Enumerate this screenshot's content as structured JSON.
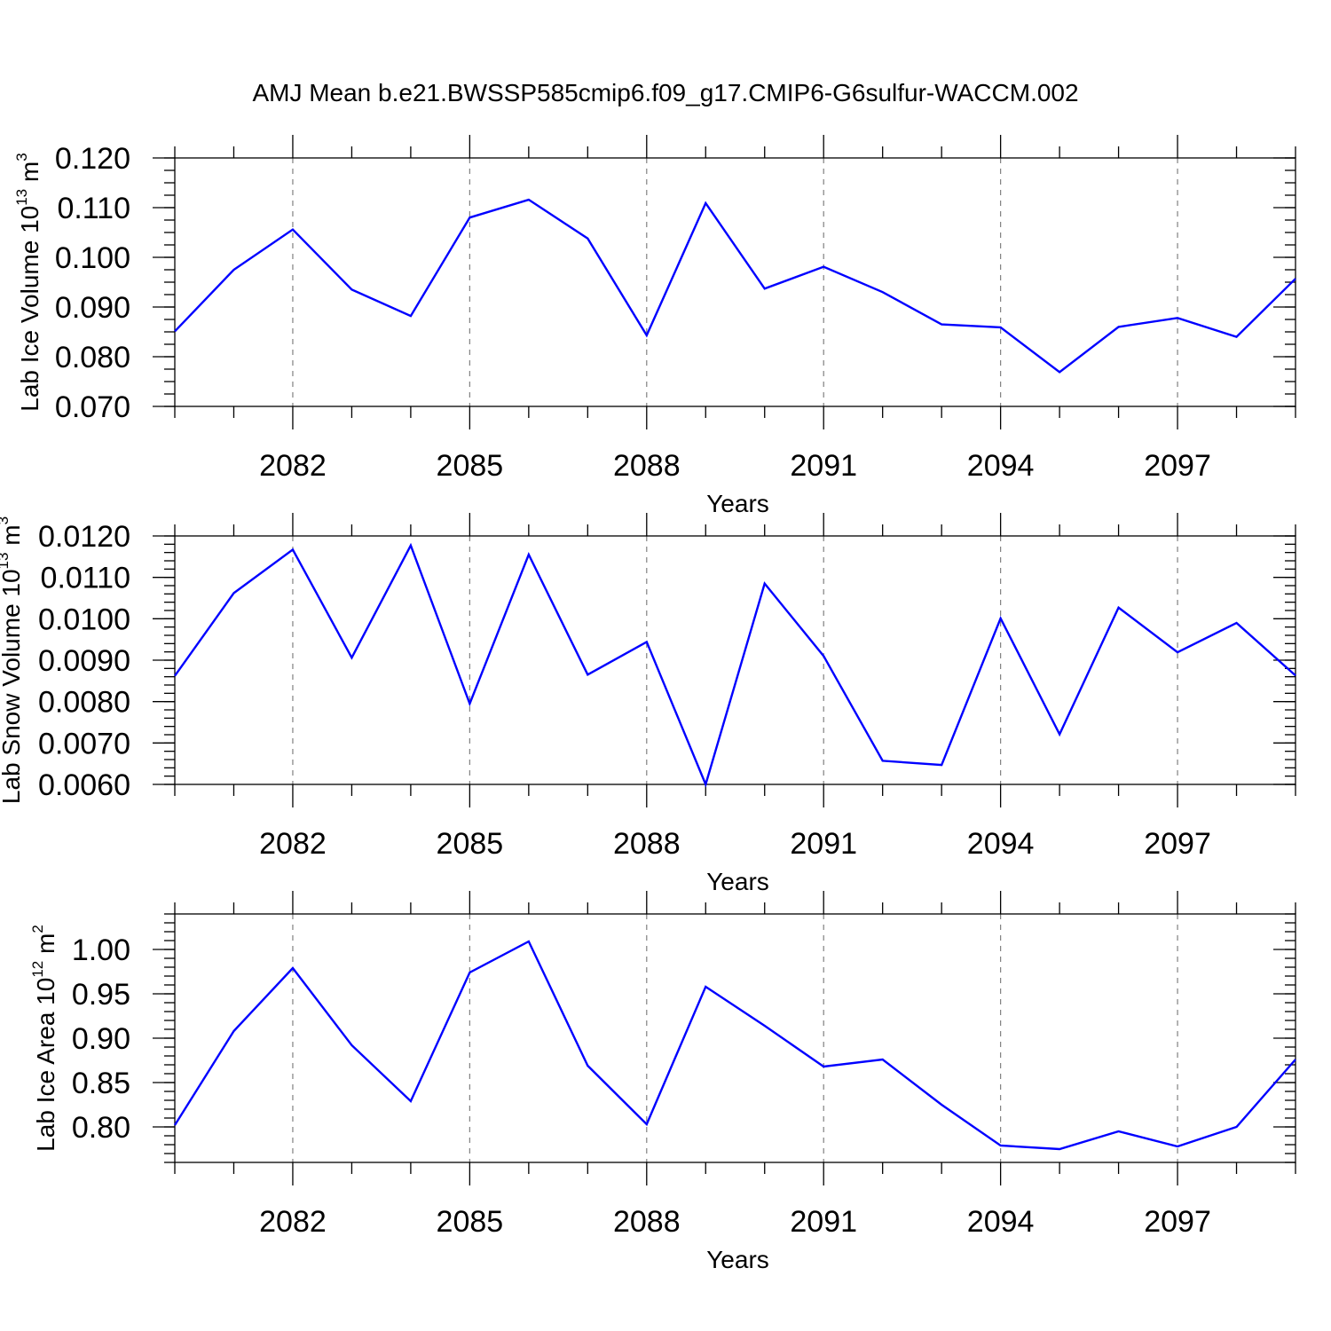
{
  "figure": {
    "title": "AMJ Mean b.e21.BWSSP585cmip6.f09_g17.CMIP6-G6sulfur-WACCM.002"
  },
  "colors": {
    "line": "#0000ff",
    "grid": "#808080"
  },
  "chart_data": [
    {
      "type": "line",
      "ylabel": {
        "main": "Lab Ice Volume 10",
        "sup1": "13",
        "mid": " m",
        "sup2": "3"
      },
      "xlabel": "Years",
      "x": [
        2080,
        2081,
        2082,
        2083,
        2084,
        2085,
        2086,
        2087,
        2088,
        2089,
        2090,
        2091,
        2092,
        2093,
        2094,
        2095,
        2096,
        2097,
        2098,
        2099
      ],
      "values": [
        0.0851,
        0.0975,
        0.1056,
        0.0935,
        0.0882,
        0.108,
        0.1116,
        0.1038,
        0.0843,
        0.1109,
        0.0937,
        0.0981,
        0.093,
        0.0865,
        0.0859,
        0.0769,
        0.086,
        0.0878,
        0.084,
        0.0957
      ],
      "xlim": [
        2080,
        2099
      ],
      "ylim": [
        0.07,
        0.12
      ],
      "yticks": [
        0.07,
        0.08,
        0.09,
        0.1,
        0.11,
        0.12
      ],
      "ytick_labels": [
        "0.070",
        "0.080",
        "0.090",
        "0.100",
        "0.110",
        "0.120"
      ],
      "yminor_step": 0.0025,
      "xticks": [
        2082,
        2085,
        2088,
        2091,
        2094,
        2097
      ],
      "xtick_labels": [
        "2082",
        "2085",
        "2088",
        "2091",
        "2094",
        "2097"
      ],
      "grid": "vertical dashed at labeled years"
    },
    {
      "type": "line",
      "ylabel": {
        "main": "Lab Snow Volume 10",
        "sup1": "13",
        "mid": " m",
        "sup2": "3"
      },
      "xlabel": "Years",
      "x": [
        2080,
        2081,
        2082,
        2083,
        2084,
        2085,
        2086,
        2087,
        2088,
        2089,
        2090,
        2091,
        2092,
        2093,
        2094,
        2095,
        2096,
        2097,
        2098,
        2099
      ],
      "values": [
        0.00862,
        0.01062,
        0.01167,
        0.00906,
        0.01177,
        0.00795,
        0.01155,
        0.00865,
        0.00944,
        0.006,
        0.01085,
        0.0091,
        0.00657,
        0.00647,
        0.01001,
        0.00721,
        0.01027,
        0.00919,
        0.0099,
        0.00863
      ],
      "xlim": [
        2080,
        2099
      ],
      "ylim": [
        0.006,
        0.012
      ],
      "yticks": [
        0.006,
        0.007,
        0.008,
        0.009,
        0.01,
        0.011,
        0.012
      ],
      "ytick_labels": [
        "0.0060",
        "0.0070",
        "0.0080",
        "0.0090",
        "0.0100",
        "0.0110",
        "0.0120"
      ],
      "yminor_step": 0.0002,
      "xticks": [
        2082,
        2085,
        2088,
        2091,
        2094,
        2097
      ],
      "xtick_labels": [
        "2082",
        "2085",
        "2088",
        "2091",
        "2094",
        "2097"
      ],
      "grid": "vertical dashed at labeled years"
    },
    {
      "type": "line",
      "ylabel": {
        "main": "Lab Ice Area 10",
        "sup1": "12",
        "mid": " m",
        "sup2": "2"
      },
      "xlabel": "Years",
      "x": [
        2080,
        2081,
        2082,
        2083,
        2084,
        2085,
        2086,
        2087,
        2088,
        2089,
        2090,
        2091,
        2092,
        2093,
        2094,
        2095,
        2096,
        2097,
        2098,
        2099
      ],
      "values": [
        0.802,
        0.908,
        0.979,
        0.892,
        0.829,
        0.974,
        1.009,
        0.869,
        0.803,
        0.958,
        0.914,
        0.868,
        0.876,
        0.825,
        0.779,
        0.775,
        0.795,
        0.778,
        0.8,
        0.876
      ],
      "xlim": [
        2080,
        2099
      ],
      "ylim": [
        0.76,
        1.04
      ],
      "yticks": [
        0.8,
        0.85,
        0.9,
        0.95,
        1.0
      ],
      "ytick_labels": [
        "0.80",
        "0.85",
        "0.90",
        "0.95",
        "1.00"
      ],
      "yminor_step": 0.01,
      "xticks": [
        2082,
        2085,
        2088,
        2091,
        2094,
        2097
      ],
      "xtick_labels": [
        "2082",
        "2085",
        "2088",
        "2091",
        "2094",
        "2097"
      ],
      "grid": "vertical dashed at labeled years"
    }
  ]
}
